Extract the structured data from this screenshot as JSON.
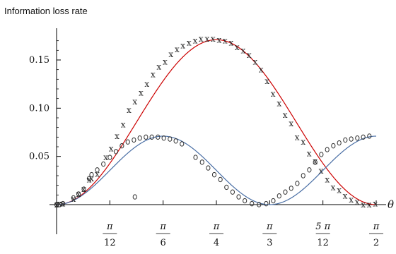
{
  "chart_data": {
    "type": "scatter",
    "title": "Information loss rate",
    "xlabel": "θ",
    "ylabel": "",
    "xlim": [
      0,
      1.5708
    ],
    "ylim": [
      -0.012,
      0.185
    ],
    "x_ticks": [
      {
        "value": 0.2618,
        "num": "π",
        "den": "12"
      },
      {
        "value": 0.5236,
        "num": "π",
        "den": "6"
      },
      {
        "value": 0.7854,
        "num": "π",
        "den": "4"
      },
      {
        "value": 1.0472,
        "num": "π",
        "den": "3"
      },
      {
        "value": 1.309,
        "num": "5 π",
        "den": "12"
      },
      {
        "value": 1.5708,
        "num": "π",
        "den": "2"
      }
    ],
    "y_ticks": [
      {
        "value": 0.05,
        "label": "0.05"
      },
      {
        "value": 0.1,
        "label": "0.10"
      },
      {
        "value": 0.15,
        "label": "0.15"
      }
    ],
    "series": [
      {
        "marker": "x",
        "color": "#cc0000",
        "curve_amplitude": 0.171,
        "curve_shape": "sin2",
        "points": [
          [
            0.0,
            0.0
          ],
          [
            0.015,
            0.001
          ],
          [
            0.031,
            0.001
          ],
          [
            0.083,
            0.006
          ],
          [
            0.108,
            0.011
          ],
          [
            0.134,
            0.016
          ],
          [
            0.16,
            0.026
          ],
          [
            0.172,
            0.027
          ],
          [
            0.2,
            0.032
          ],
          [
            0.242,
            0.049
          ],
          [
            0.268,
            0.058
          ],
          [
            0.297,
            0.071
          ],
          [
            0.327,
            0.083
          ],
          [
            0.356,
            0.098
          ],
          [
            0.385,
            0.107
          ],
          [
            0.415,
            0.116
          ],
          [
            0.444,
            0.125
          ],
          [
            0.474,
            0.135
          ],
          [
            0.503,
            0.143
          ],
          [
            0.533,
            0.148
          ],
          [
            0.562,
            0.156
          ],
          [
            0.592,
            0.161
          ],
          [
            0.621,
            0.165
          ],
          [
            0.651,
            0.168
          ],
          [
            0.681,
            0.17
          ],
          [
            0.71,
            0.172
          ],
          [
            0.74,
            0.172
          ],
          [
            0.769,
            0.172
          ],
          [
            0.799,
            0.171
          ],
          [
            0.828,
            0.17
          ],
          [
            0.858,
            0.168
          ],
          [
            0.887,
            0.163
          ],
          [
            0.917,
            0.16
          ],
          [
            0.946,
            0.155
          ],
          [
            0.976,
            0.148
          ],
          [
            1.005,
            0.14
          ],
          [
            1.035,
            0.128
          ],
          [
            1.064,
            0.115
          ],
          [
            1.094,
            0.105
          ],
          [
            1.123,
            0.093
          ],
          [
            1.153,
            0.084
          ],
          [
            1.182,
            0.07
          ],
          [
            1.212,
            0.065
          ],
          [
            1.241,
            0.053
          ],
          [
            1.271,
            0.045
          ],
          [
            1.3,
            0.035
          ],
          [
            1.33,
            0.026
          ],
          [
            1.359,
            0.018
          ],
          [
            1.389,
            0.015
          ],
          [
            1.418,
            0.009
          ],
          [
            1.448,
            0.005
          ],
          [
            1.477,
            0.003
          ],
          [
            1.507,
            0.0
          ],
          [
            1.536,
            0.0
          ],
          [
            1.566,
            0.001
          ]
        ]
      },
      {
        "marker": "o",
        "color": "#4a6fa5",
        "curve_amplitude": 0.071,
        "curve_shape": "sin4",
        "points": [
          [
            0.0,
            0.0
          ],
          [
            0.015,
            0.0
          ],
          [
            0.031,
            0.001
          ],
          [
            0.083,
            0.007
          ],
          [
            0.108,
            0.011
          ],
          [
            0.134,
            0.016
          ],
          [
            0.16,
            0.027
          ],
          [
            0.172,
            0.031
          ],
          [
            0.2,
            0.036
          ],
          [
            0.23,
            0.042
          ],
          [
            0.262,
            0.049
          ],
          [
            0.292,
            0.055
          ],
          [
            0.321,
            0.061
          ],
          [
            0.35,
            0.065
          ],
          [
            0.38,
            0.067
          ],
          [
            0.409,
            0.069
          ],
          [
            0.439,
            0.07
          ],
          [
            0.468,
            0.07
          ],
          [
            0.498,
            0.07
          ],
          [
            0.527,
            0.069
          ],
          [
            0.557,
            0.068
          ],
          [
            0.586,
            0.066
          ],
          [
            0.616,
            0.063
          ],
          [
            0.683,
            0.049
          ],
          [
            0.715,
            0.044
          ],
          [
            0.745,
            0.038
          ],
          [
            0.775,
            0.031
          ],
          [
            0.805,
            0.026
          ],
          [
            0.835,
            0.018
          ],
          [
            0.865,
            0.013
          ],
          [
            0.895,
            0.008
          ],
          [
            0.925,
            0.004
          ],
          [
            0.96,
            0.001
          ],
          [
            0.995,
            0.0
          ],
          [
            1.03,
            0.001
          ],
          [
            1.065,
            0.004
          ],
          [
            1.094,
            0.009
          ],
          [
            1.124,
            0.013
          ],
          [
            1.153,
            0.017
          ],
          [
            1.183,
            0.022
          ],
          [
            1.212,
            0.03
          ],
          [
            1.242,
            0.036
          ],
          [
            1.271,
            0.044
          ],
          [
            1.301,
            0.052
          ],
          [
            1.33,
            0.057
          ],
          [
            1.36,
            0.061
          ],
          [
            1.389,
            0.064
          ],
          [
            1.419,
            0.067
          ],
          [
            1.448,
            0.068
          ],
          [
            1.478,
            0.069
          ],
          [
            1.507,
            0.07
          ],
          [
            1.537,
            0.071
          ],
          [
            0.385,
            0.008
          ]
        ]
      }
    ],
    "grid": false,
    "legend": "none"
  }
}
